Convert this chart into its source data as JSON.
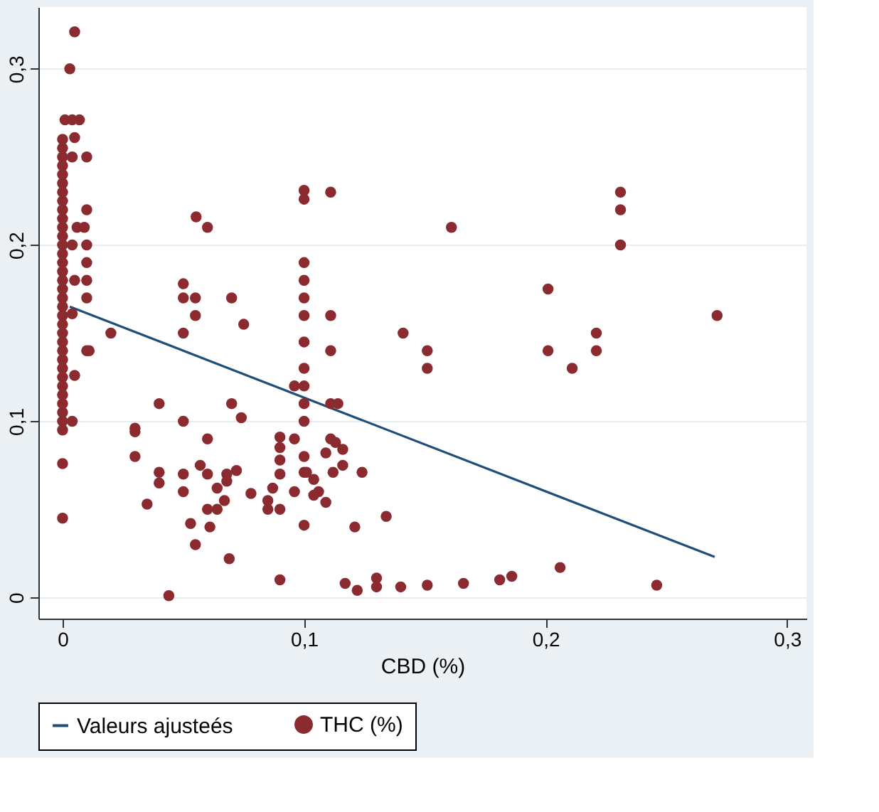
{
  "chart_data": {
    "type": "scatter",
    "xlabel": "CBD (%)",
    "xlim": [
      -0.01,
      0.308
    ],
    "ylim": [
      -0.012,
      0.335
    ],
    "xticks": [
      {
        "value": 0,
        "label": "0"
      },
      {
        "value": 0.1,
        "label": "0,1"
      },
      {
        "value": 0.2,
        "label": "0,2"
      },
      {
        "value": 0.3,
        "label": "0,3"
      }
    ],
    "yticks": [
      {
        "value": 0,
        "label": "0"
      },
      {
        "value": 0.1,
        "label": "0,1"
      },
      {
        "value": 0.2,
        "label": "0,2"
      },
      {
        "value": 0.3,
        "label": "0,3"
      }
    ],
    "grid": "y",
    "legend": "bottom",
    "series": [
      {
        "name": "Valeurs ajusteés",
        "type": "line",
        "color": "#1f4e79",
        "x": [
          0.003,
          0.27
        ],
        "values": [
          0.165,
          0.023
        ]
      },
      {
        "name": "THC (%)",
        "marker": "circle",
        "color": "#8b2a2f",
        "x": [
          0,
          0,
          0,
          0,
          0,
          0,
          0,
          0,
          0,
          0,
          0,
          0,
          0,
          0,
          0,
          0,
          0,
          0,
          0,
          0,
          0,
          0,
          0,
          0,
          0,
          0,
          0,
          0,
          0,
          0,
          0,
          0,
          0,
          0,
          0,
          0,
          0.003,
          0.005,
          0.001,
          0.004,
          0.007,
          0.005,
          0.01,
          0.004,
          0.01,
          0.006,
          0.009,
          0.01,
          0.004,
          0.01,
          0.01,
          0.005,
          0.01,
          0.004,
          0.02,
          0.01,
          0.011,
          0.005,
          0.004,
          0.0553,
          0.06,
          0.1,
          0.1,
          0.111,
          0.1,
          0.1,
          0.1,
          0.1,
          0.1,
          0.1,
          0.1,
          0.1,
          0.1,
          0.1,
          0.1,
          0.1,
          0.05,
          0.05,
          0.055,
          0.055,
          0.05,
          0.07,
          0.075,
          0.111,
          0.111,
          0.096,
          0.111,
          0.114,
          0.04,
          0.07,
          0.074,
          0.05,
          0.03,
          0.03,
          0.03,
          0.04,
          0.04,
          0.05,
          0.05,
          0.035,
          0.06,
          0.057,
          0.06,
          0.064,
          0.067,
          0.06,
          0.064,
          0.068,
          0.068,
          0.072,
          0.053,
          0.061,
          0.055,
          0.078,
          0.069,
          0.044,
          0.09,
          0.09,
          0.09,
          0.096,
          0.09,
          0.087,
          0.085,
          0.085,
          0.09,
          0.096,
          0.101,
          0.104,
          0.104,
          0.106,
          0.109,
          0.109,
          0.111,
          0.113,
          0.116,
          0.116,
          0.112,
          0.124,
          0.134,
          0.121,
          0.09,
          0.117,
          0.122,
          0.13,
          0.13,
          0.14,
          0.141,
          0.161,
          0.231,
          0.231,
          0.231,
          0.201,
          0.271,
          0.151,
          0.151,
          0.201,
          0.211,
          0.221,
          0.221,
          0.151,
          0.166,
          0.181,
          0.186,
          0.206,
          0.246
        ],
        "values": [
          0.045,
          0.076,
          0.095,
          0.1,
          0.105,
          0.11,
          0.115,
          0.12,
          0.125,
          0.13,
          0.135,
          0.14,
          0.145,
          0.15,
          0.155,
          0.16,
          0.165,
          0.17,
          0.175,
          0.18,
          0.185,
          0.19,
          0.195,
          0.2,
          0.205,
          0.21,
          0.215,
          0.22,
          0.225,
          0.23,
          0.235,
          0.24,
          0.245,
          0.25,
          0.255,
          0.26,
          0.3,
          0.321,
          0.271,
          0.271,
          0.271,
          0.261,
          0.25,
          0.25,
          0.22,
          0.21,
          0.21,
          0.2,
          0.2,
          0.19,
          0.18,
          0.18,
          0.17,
          0.161,
          0.15,
          0.14,
          0.14,
          0.126,
          0.1,
          0.216,
          0.21,
          0.231,
          0.226,
          0.23,
          0.19,
          0.18,
          0.17,
          0.16,
          0.145,
          0.13,
          0.12,
          0.11,
          0.1,
          0.08,
          0.071,
          0.041,
          0.178,
          0.17,
          0.17,
          0.16,
          0.15,
          0.17,
          0.155,
          0.16,
          0.14,
          0.12,
          0.11,
          0.11,
          0.11,
          0.11,
          0.102,
          0.1,
          0.096,
          0.094,
          0.08,
          0.071,
          0.065,
          0.07,
          0.06,
          0.053,
          0.09,
          0.075,
          0.07,
          0.062,
          0.055,
          0.05,
          0.05,
          0.07,
          0.066,
          0.072,
          0.042,
          0.04,
          0.03,
          0.059,
          0.022,
          0.001,
          0.091,
          0.085,
          0.078,
          0.09,
          0.07,
          0.062,
          0.055,
          0.05,
          0.05,
          0.06,
          0.071,
          0.067,
          0.058,
          0.06,
          0.054,
          0.082,
          0.09,
          0.088,
          0.084,
          0.075,
          0.071,
          0.071,
          0.046,
          0.04,
          0.01,
          0.008,
          0.004,
          0.011,
          0.006,
          0.006,
          0.15,
          0.21,
          0.23,
          0.22,
          0.2,
          0.175,
          0.16,
          0.14,
          0.13,
          0.14,
          0.13,
          0.15,
          0.14,
          0.007,
          0.008,
          0.01,
          0.012,
          0.017,
          0.007
        ]
      }
    ]
  }
}
